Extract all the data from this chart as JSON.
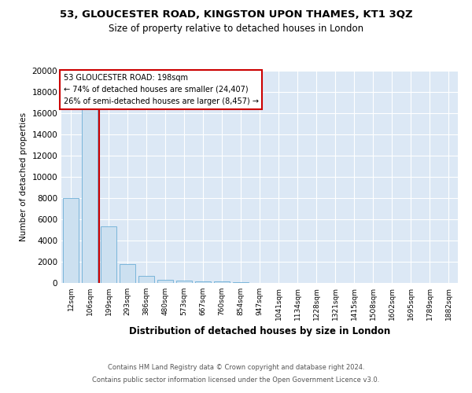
{
  "title": "53, GLOUCESTER ROAD, KINGSTON UPON THAMES, KT1 3QZ",
  "subtitle": "Size of property relative to detached houses in London",
  "xlabel": "Distribution of detached houses by size in London",
  "ylabel": "Number of detached properties",
  "bar_labels": [
    "12sqm",
    "106sqm",
    "199sqm",
    "293sqm",
    "386sqm",
    "480sqm",
    "573sqm",
    "667sqm",
    "760sqm",
    "854sqm",
    "947sqm",
    "1041sqm",
    "1134sqm",
    "1228sqm",
    "1321sqm",
    "1415sqm",
    "1508sqm",
    "1602sqm",
    "1695sqm",
    "1789sqm",
    "1882sqm"
  ],
  "bar_values": [
    8000,
    16600,
    5300,
    1750,
    680,
    310,
    220,
    180,
    150,
    80,
    0,
    0,
    0,
    0,
    0,
    0,
    0,
    0,
    0,
    0,
    0
  ],
  "property_label": "53 GLOUCESTER ROAD: 198sqm",
  "annotation_line1": "← 74% of detached houses are smaller (24,407)",
  "annotation_line2": "26% of semi-detached houses are larger (8,457) →",
  "bar_color": "#cce0f0",
  "bar_edge_color": "#6baed6",
  "vline_color": "#cc0000",
  "annotation_box_color": "#cc0000",
  "background_color": "#dce8f5",
  "ylim": [
    0,
    20000
  ],
  "yticks": [
    0,
    2000,
    4000,
    6000,
    8000,
    10000,
    12000,
    14000,
    16000,
    18000,
    20000
  ],
  "footer_line1": "Contains HM Land Registry data © Crown copyright and database right 2024.",
  "footer_line2": "Contains public sector information licensed under the Open Government Licence v3.0."
}
